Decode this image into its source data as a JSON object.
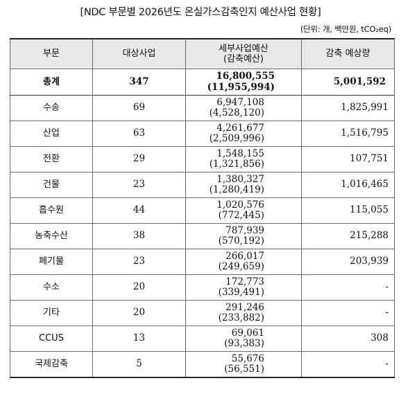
{
  "title": "[NDC 부문별 2026년도 온실가스감축인지 예산사업 현황]",
  "unit": "(단위: 개, 백만원, tCO₂eq)",
  "headers": {
    "sector": "부문",
    "projects": "대상사업",
    "budget_line1": "세부사업예산",
    "budget_line2": "(감축예산)",
    "reduction": "감축 예상량"
  },
  "total": {
    "sector": "총계",
    "projects": "347",
    "budget": "16,800,555",
    "reduction_budget": "(11,955,994)",
    "reduction": "5,001,592"
  },
  "rows": [
    {
      "sector": "수송",
      "projects": "69",
      "budget": "6,947,108",
      "reduction_budget": "(4,528,120)",
      "reduction": "1,825,991"
    },
    {
      "sector": "산업",
      "projects": "63",
      "budget": "4,261,677",
      "reduction_budget": "(2,509,996)",
      "reduction": "1,516,795"
    },
    {
      "sector": "전환",
      "projects": "29",
      "budget": "1,548,155",
      "reduction_budget": "(1,321,856)",
      "reduction": "107,751"
    },
    {
      "sector": "건물",
      "projects": "23",
      "budget": "1,380,327",
      "reduction_budget": "(1,280,419)",
      "reduction": "1,016,465"
    },
    {
      "sector": "흡수원",
      "projects": "44",
      "budget": "1,020,576",
      "reduction_budget": "(772,445)",
      "reduction": "115,055"
    },
    {
      "sector": "농축수산",
      "projects": "38",
      "budget": "787,939",
      "reduction_budget": "(570,192)",
      "reduction": "215,288"
    },
    {
      "sector": "폐기물",
      "projects": "23",
      "budget": "266,017",
      "reduction_budget": "(249,659)",
      "reduction": "203,939"
    },
    {
      "sector": "수소",
      "projects": "20",
      "budget": "172,773",
      "reduction_budget": "(339,491)",
      "reduction": "-"
    },
    {
      "sector": "기타",
      "projects": "20",
      "budget": "291,246",
      "reduction_budget": "(233,882)",
      "reduction": "-"
    },
    {
      "sector": "CCUS",
      "projects": "13",
      "budget": "69,061",
      "reduction_budget": "(93,383)",
      "reduction": "308"
    },
    {
      "sector": "국제감축",
      "projects": "5",
      "budget": "55,676",
      "reduction_budget": "(56,551)",
      "reduction": "-"
    }
  ]
}
